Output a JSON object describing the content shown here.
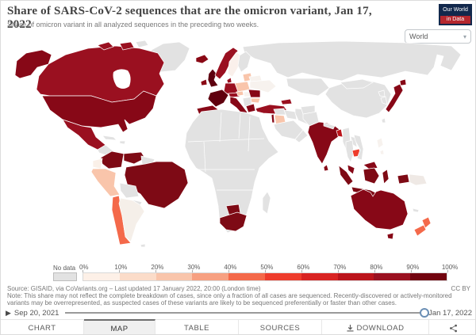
{
  "header": {
    "title": "Share of SARS-CoV-2 sequences that are the omicron variant, Jan 17, 2022",
    "subtitle": "Share of omicron variant in all analyzed sequences in the preceding two weeks.",
    "logo_line1": "Our World",
    "logo_line2": "in Data",
    "region_selector_value": "World"
  },
  "legend": {
    "no_data_label": "No data",
    "tick_labels": [
      "0%",
      "10%",
      "20%",
      "30%",
      "40%",
      "50%",
      "60%",
      "70%",
      "80%",
      "90%",
      "100%"
    ],
    "bin_colors": [
      "#fdf0e7",
      "#fbdcc9",
      "#f9c5ab",
      "#f7a081",
      "#f4694a",
      "#ee3c2c",
      "#d92322",
      "#bb141b",
      "#9a1020",
      "#72030f"
    ],
    "no_data_color": "#e2e2e2"
  },
  "map": {
    "countries": {
      "canada": "#9a1020",
      "arctic-islands": "#9a1020",
      "united-states": "#870817",
      "mexico": "#9a1020",
      "central-america": "#faf5f1",
      "colombia": "#7e0a15",
      "venezuela": "#7e0a15",
      "ecuador": "#faf0e8",
      "peru": "#f9c5ab",
      "brazil": "#7e0a15",
      "chile": "#f4694a",
      "argentina": "#f5efe9",
      "iceland": "#8a0815",
      "ireland": "#8a0815",
      "united-kingdom": "#5e0010",
      "norway": "#9a1020",
      "sweden": "#faf0eb",
      "denmark": "#9a1020",
      "baltics": "#f9c5ab",
      "poland": "#f9c5ab",
      "germany": "#9a1020",
      "france": "#60000e",
      "spain": "#870817",
      "italy": "#870817",
      "austria": "#9a1020",
      "czechia": "#f9c5ab",
      "hungary": "#f7f2ee",
      "romania": "#870817",
      "bulgaria": "#f9c5ab",
      "greece": "#870817",
      "ukraine": "#f7f2ee",
      "belarus": "#f7f2ee",
      "turkey": "#9a1020",
      "caucasus": "#9a1020",
      "israel": "#870817",
      "jordan": "#f9c5ab",
      "south-africa": "#7e0a15",
      "botswana": "#7e0a15",
      "india": "#870817",
      "bangladesh": "#bb141b",
      "sri-lanka": "#870817",
      "cambodia": "#ee3c2c",
      "malaysia": "#870817",
      "indonesia": "#7e0a15",
      "philippines": "#f7f2ee",
      "papua-new-guinea": "#efe9e5",
      "japan": "#870817",
      "australia": "#870817",
      "new-zealand": "#f4694a"
    },
    "default_color": "#e2e2e2",
    "ocean_color": "#ffffff"
  },
  "chart_data": {
    "type": "choropleth",
    "title": "Share of SARS-CoV-2 sequences that are the omicron variant, Jan 17, 2022",
    "unit": "%",
    "bins": [
      "0-10%",
      "10-20%",
      "20-30%",
      "30-40%",
      "40-50%",
      "50-60%",
      "60-70%",
      "70-80%",
      "80-90%",
      "90-100%",
      "No data"
    ],
    "countries_by_bin": {
      "90-100%": [
        "United States",
        "United Kingdom",
        "France",
        "Spain",
        "Ireland",
        "Iceland",
        "Italy",
        "Greece",
        "Romania",
        "Brazil",
        "Colombia",
        "Venezuela",
        "South Africa",
        "Botswana",
        "India",
        "Sri Lanka",
        "Indonesia",
        "Malaysia",
        "Japan",
        "Australia",
        "Israel"
      ],
      "80-90%": [
        "Canada",
        "Mexico",
        "Norway",
        "Denmark",
        "Germany",
        "Austria",
        "Turkey",
        "Georgia/Azerbaijan"
      ],
      "70-80%": [
        "Bangladesh"
      ],
      "50-60%": [
        "Cambodia"
      ],
      "40-50%": [
        "Chile",
        "New Zealand"
      ],
      "20-30%": [
        "Peru",
        "Poland",
        "Baltic states",
        "Czechia",
        "Bulgaria",
        "Jordan"
      ],
      "0-10%": [
        "Sweden",
        "Ukraine",
        "Belarus",
        "Hungary",
        "Ecuador",
        "Argentina",
        "Philippines",
        "Papua New Guinea"
      ],
      "No data": [
        "Russia",
        "China",
        "Mongolia",
        "Central Asia",
        "Greenland",
        "Finland",
        "most of Africa",
        "Saudi Arabia",
        "Iran",
        "Iraq",
        "Pakistan",
        "Afghanistan",
        "Myanmar",
        "Thailand",
        "Laos",
        "Vietnam",
        "Korea",
        "Bolivia",
        "Paraguay",
        "Cuba",
        "Madagascar"
      ]
    }
  },
  "footer": {
    "source": "Source: GISAID, via CoVariants.org – Last updated 17 January 2022, 20:00 (London time)",
    "license": "CC BY",
    "note": "Note: This share may not reflect the complete breakdown of cases, since only a fraction of all cases are sequenced. Recently-discovered or actively-monitored variants may be overrepresented, as suspected cases of these variants are likely to be sequenced preferentially or faster than other cases."
  },
  "timeline": {
    "start_label": "Sep 20, 2021",
    "end_label": "Jan 17, 2022",
    "play_icon": "▶"
  },
  "tabs": {
    "chart": "CHART",
    "map": "MAP",
    "table": "TABLE",
    "sources": "SOURCES",
    "download": "DOWNLOAD"
  }
}
